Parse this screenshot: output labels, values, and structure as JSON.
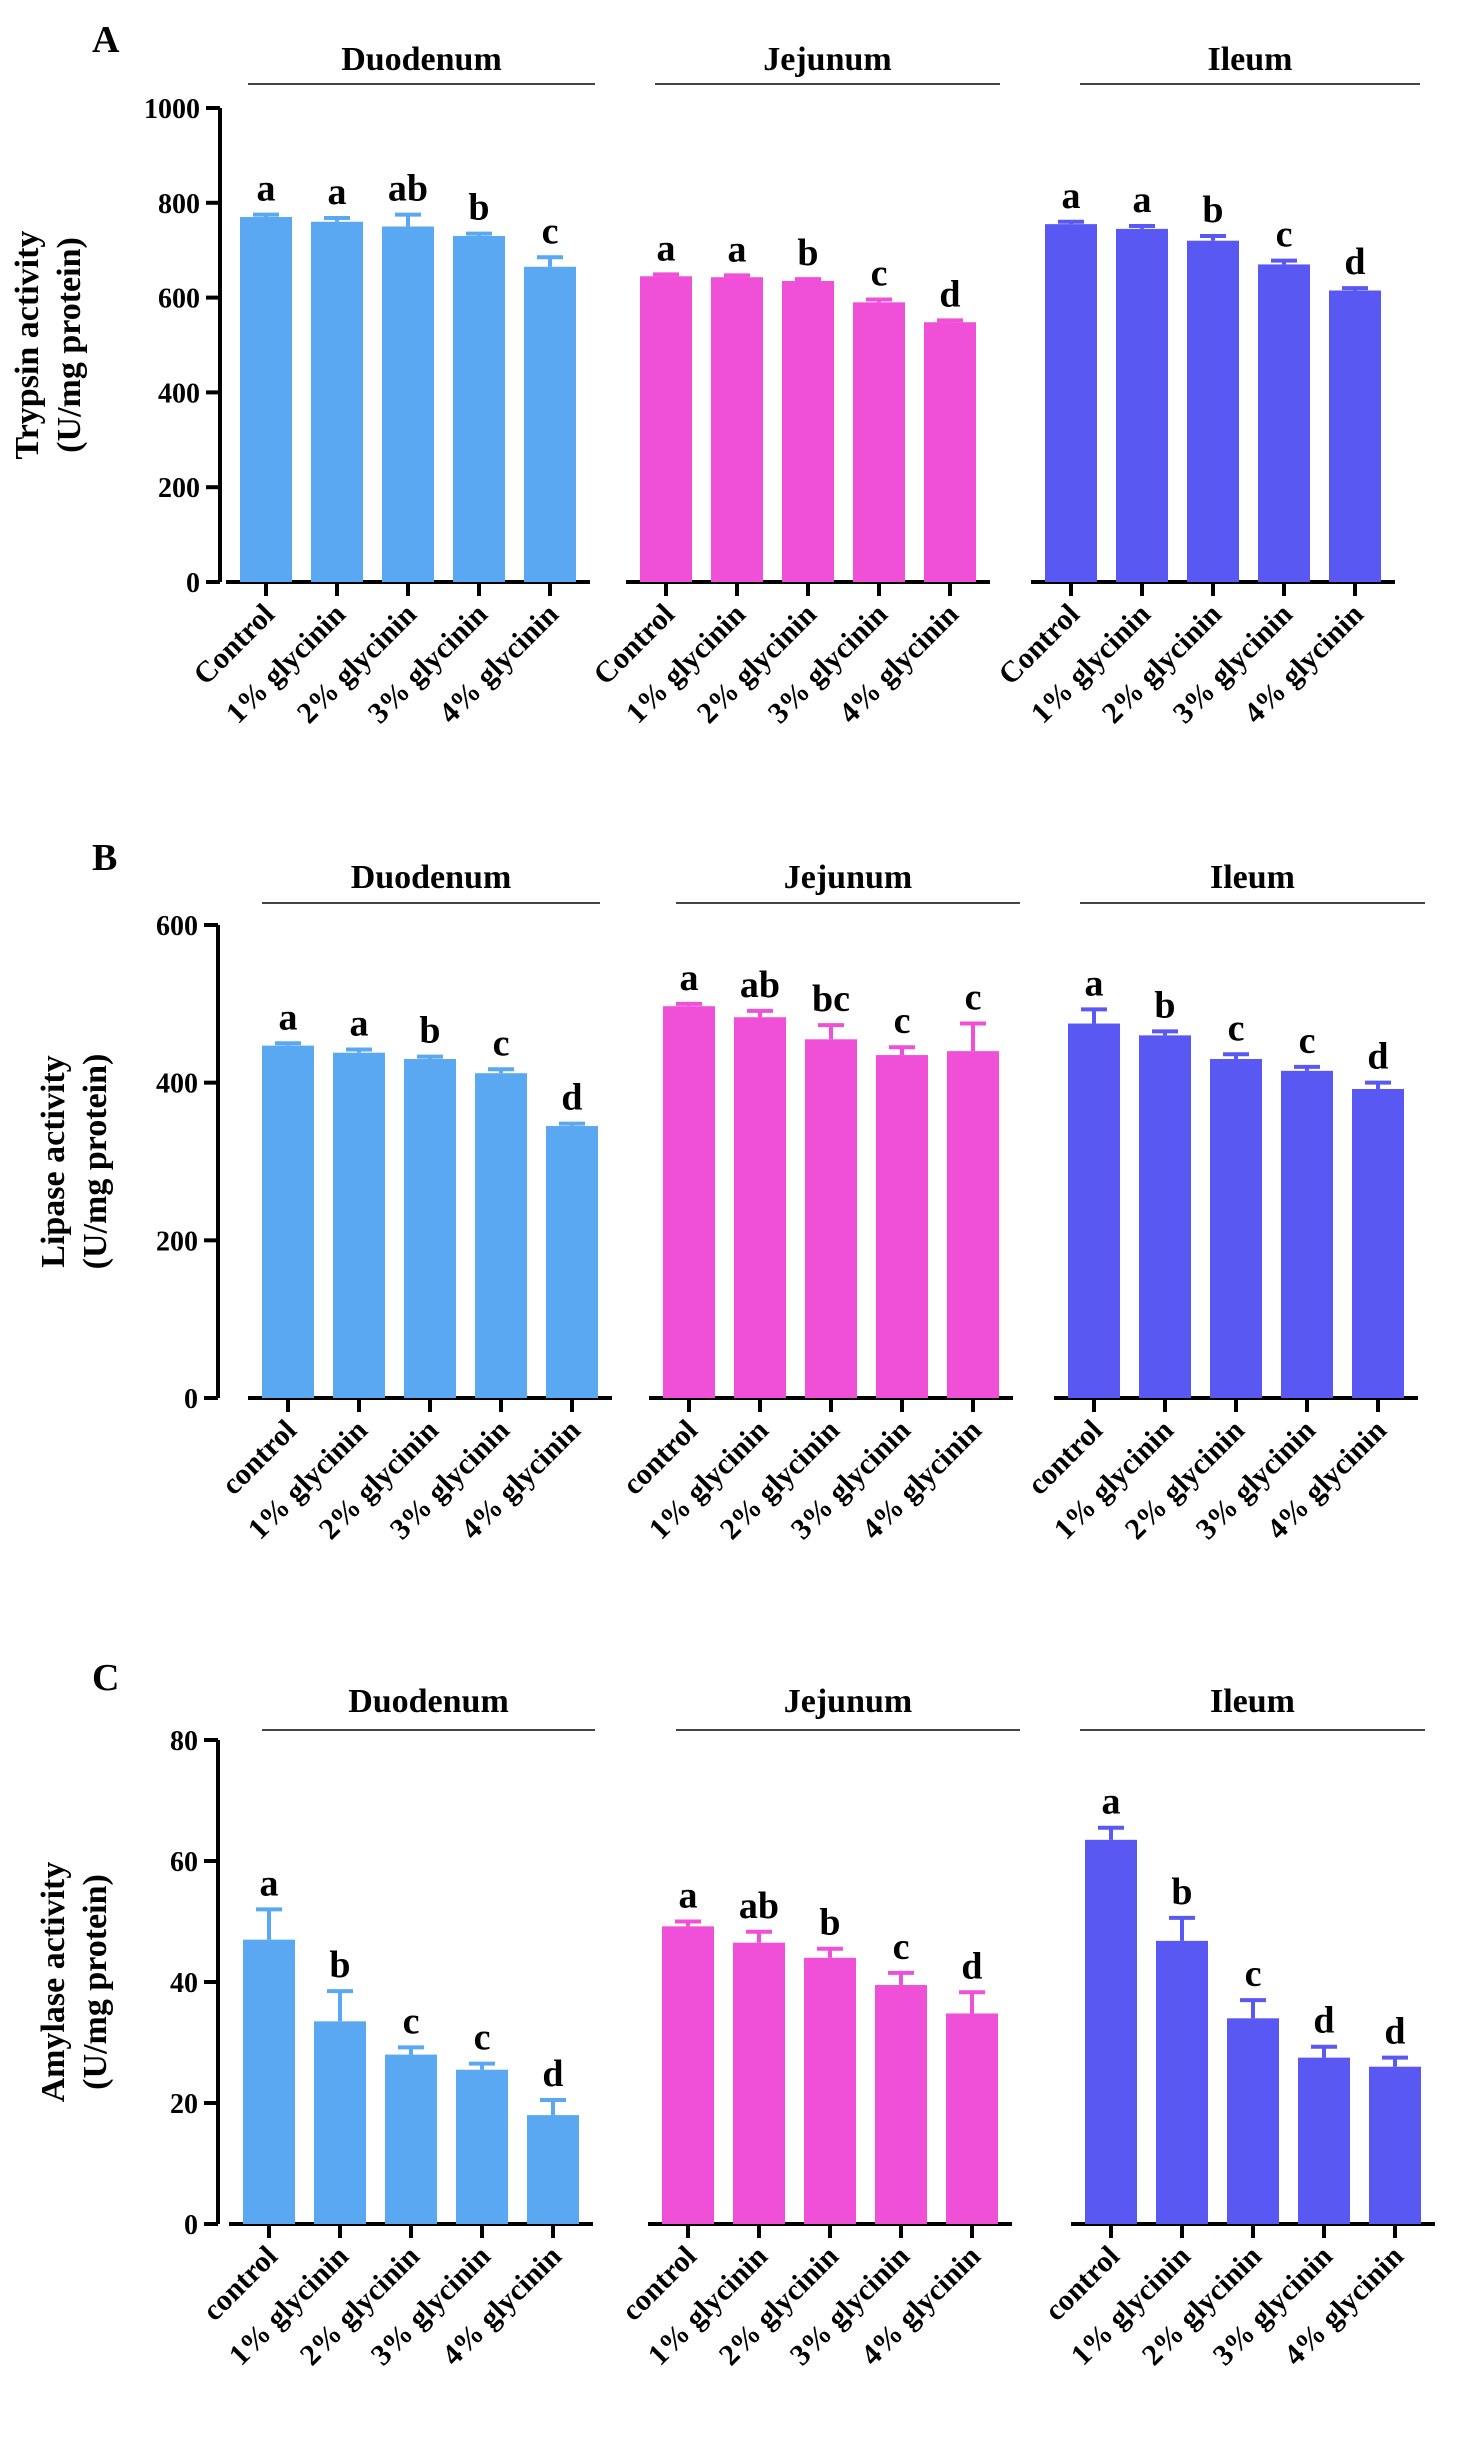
{
  "colors": {
    "duodenum": "#5aa8f2",
    "jejunum": "#f04fd8",
    "ileum": "#5a58f2",
    "axis": "#000000",
    "region_rule": "#444444"
  },
  "chart_data": [
    {
      "panel": "A",
      "type": "bar",
      "ylabel_line1": "Trypsin activity",
      "ylabel_line2": "(U/mg protein)",
      "ylim": [
        0,
        1000
      ],
      "yticks": [
        "0",
        "200",
        "400",
        "600",
        "800",
        "1000"
      ],
      "categories": [
        "Control",
        "1% glycinin",
        "2% glycinin",
        "3% glycinin",
        "4% glycinin"
      ],
      "series": [
        {
          "name": "Duodenum",
          "values": [
            770,
            760,
            750,
            730,
            665
          ],
          "errors": [
            5,
            8,
            25,
            5,
            20
          ],
          "letters": [
            "a",
            "a",
            "ab",
            "b",
            "c"
          ]
        },
        {
          "name": "Jejunum",
          "values": [
            645,
            643,
            635,
            590,
            548
          ],
          "errors": [
            4,
            4,
            4,
            6,
            4
          ],
          "letters": [
            "a",
            "a",
            "b",
            "c",
            "d"
          ]
        },
        {
          "name": "Ileum",
          "values": [
            755,
            745,
            720,
            670,
            615
          ],
          "errors": [
            5,
            6,
            10,
            8,
            5
          ],
          "letters": [
            "a",
            "a",
            "b",
            "c",
            "d"
          ]
        }
      ]
    },
    {
      "panel": "B",
      "type": "bar",
      "ylabel_line1": "Lipase activity",
      "ylabel_line2": "(U/mg protein)",
      "ylim": [
        0,
        600
      ],
      "yticks": [
        "0",
        "200",
        "400",
        "600"
      ],
      "categories": [
        "control",
        "1% glycinin",
        "2% glycinin",
        "3% glycinin",
        "4% glycinin"
      ],
      "series": [
        {
          "name": "Duodenum",
          "values": [
            447,
            438,
            430,
            412,
            345
          ],
          "errors": [
            3,
            4,
            3,
            5,
            3
          ],
          "letters": [
            "a",
            "a",
            "b",
            "c",
            "d"
          ]
        },
        {
          "name": "Jejunum",
          "values": [
            497,
            483,
            455,
            435,
            440
          ],
          "errors": [
            3,
            8,
            18,
            10,
            35
          ],
          "letters": [
            "a",
            "ab",
            "bc",
            "c",
            "c"
          ]
        },
        {
          "name": "Ileum",
          "values": [
            475,
            460,
            430,
            415,
            392
          ],
          "errors": [
            18,
            5,
            6,
            5,
            8
          ],
          "letters": [
            "a",
            "b",
            "c",
            "c",
            "d"
          ]
        }
      ]
    },
    {
      "panel": "C",
      "type": "bar",
      "ylabel_line1": "Amylase activity",
      "ylabel_line2": "(U/mg protein)",
      "ylim": [
        0,
        80
      ],
      "yticks": [
        "0",
        "20",
        "40",
        "60",
        "80"
      ],
      "categories": [
        "control",
        "1% glycinin",
        "2% glycinin",
        "3% glycinin",
        "4% glycinin"
      ],
      "series": [
        {
          "name": "Duodenum",
          "values": [
            47,
            33.5,
            28,
            25.5,
            18
          ],
          "errors": [
            5,
            5,
            1.2,
            1,
            2.5
          ],
          "letters": [
            "a",
            "b",
            "c",
            "c",
            "d"
          ]
        },
        {
          "name": "Jejunum",
          "values": [
            49.2,
            46.5,
            44,
            39.5,
            34.8
          ],
          "errors": [
            0.8,
            1.8,
            1.5,
            2,
            3.5
          ],
          "letters": [
            "a",
            "ab",
            "b",
            "c",
            "d"
          ]
        },
        {
          "name": "Ileum",
          "values": [
            63.5,
            46.8,
            34,
            27.5,
            26
          ],
          "errors": [
            2,
            3.8,
            3,
            1.8,
            1.5
          ],
          "letters": [
            "a",
            "b",
            "c",
            "d",
            "d"
          ]
        }
      ]
    }
  ]
}
